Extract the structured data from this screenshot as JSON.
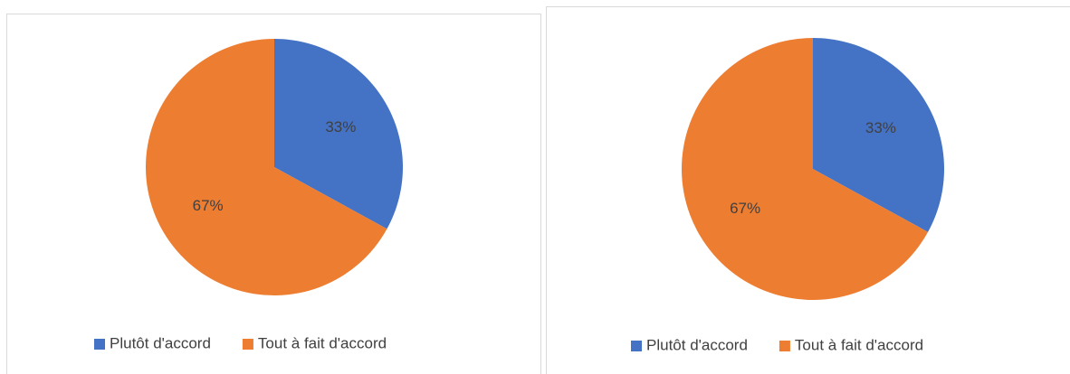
{
  "chart_data": [
    {
      "type": "pie",
      "categories": [
        "Plutôt d'accord",
        "Tout à fait d'accord"
      ],
      "values": [
        33,
        67
      ],
      "value_labels": [
        "33%",
        "67%"
      ],
      "colors": [
        "#4472c4",
        "#ed7d31"
      ],
      "legend": "bottom"
    },
    {
      "type": "pie",
      "categories": [
        "Plutôt d'accord",
        "Tout à fait d'accord"
      ],
      "values": [
        33,
        67
      ],
      "value_labels": [
        "33%",
        "67%"
      ],
      "colors": [
        "#4472c4",
        "#ed7d31"
      ],
      "legend": "bottom"
    }
  ]
}
